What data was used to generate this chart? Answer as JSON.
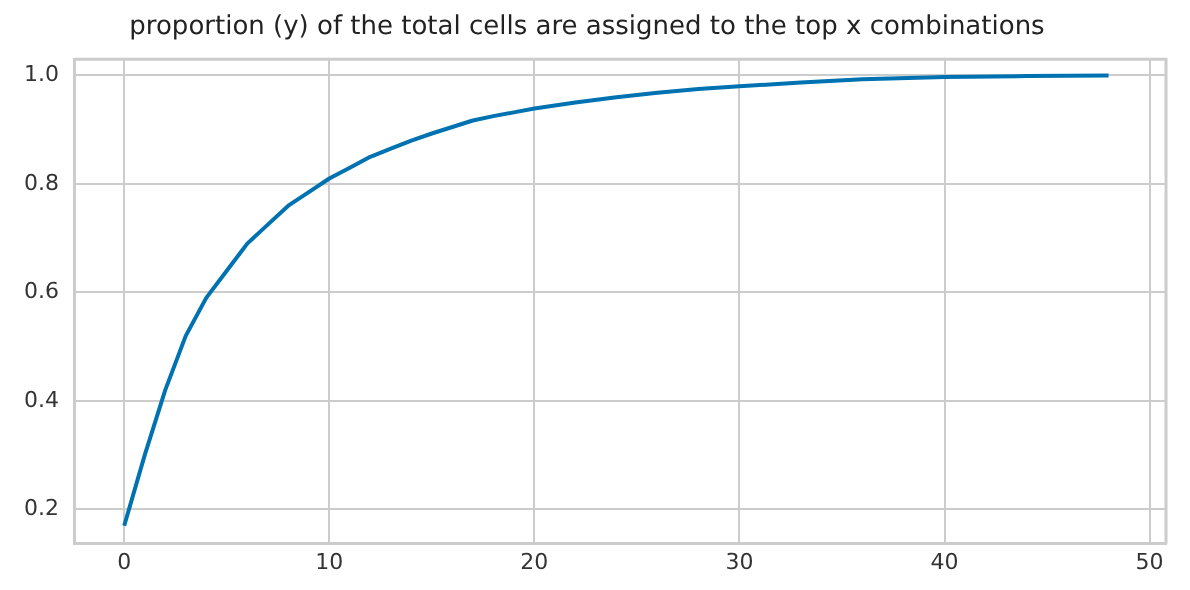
{
  "chart_data": {
    "type": "line",
    "title": "proportion (y) of the total cells are assigned to the top x combinations",
    "x": [
      0,
      1,
      2,
      3,
      4,
      5,
      6,
      7,
      8,
      9,
      10,
      11,
      12,
      13,
      14,
      15,
      16,
      17,
      18,
      19,
      20,
      22,
      24,
      26,
      28,
      30,
      33,
      36,
      40,
      44,
      48
    ],
    "series": [
      {
        "color": "#0072b2",
        "values": [
          0.17,
          0.3,
          0.42,
          0.52,
          0.59,
          0.64,
          0.69,
          0.725,
          0.76,
          0.785,
          0.81,
          0.83,
          0.85,
          0.865,
          0.88,
          0.893,
          0.905,
          0.917,
          0.925,
          0.932,
          0.939,
          0.95,
          0.96,
          0.968,
          0.975,
          0.98,
          0.987,
          0.993,
          0.997,
          0.999,
          1.0
        ]
      }
    ],
    "xlim": [
      -2.4,
      50.8
    ],
    "xticks": [
      0,
      10,
      20,
      30,
      40,
      50
    ],
    "ylim": [
      0.137,
      1.03
    ],
    "yticks": [
      {
        "value": 0.2,
        "label": "0.2"
      },
      {
        "value": 0.4,
        "label": "0.4"
      },
      {
        "value": 0.6,
        "label": "0.6"
      },
      {
        "value": 0.8,
        "label": "0.8"
      },
      {
        "value": 1.0,
        "label": "1.0"
      }
    ],
    "grid": true,
    "legend": false
  }
}
